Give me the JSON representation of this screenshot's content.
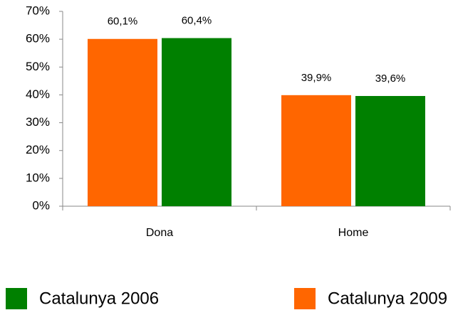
{
  "chart_data": {
    "type": "bar",
    "categories": [
      "Dona",
      "Home"
    ],
    "series": [
      {
        "name": "Catalunya 2009",
        "color": "#ff6600",
        "values": [
          60.1,
          39.9
        ],
        "value_labels": [
          "60,1%",
          "39,9%"
        ]
      },
      {
        "name": "Catalunya 2006",
        "color": "#008000",
        "values": [
          60.4,
          39.6
        ],
        "value_labels": [
          "60,4%",
          "39,6%"
        ]
      }
    ],
    "ylim": [
      0,
      70
    ],
    "yticks": [
      {
        "value": 0,
        "label": "0%"
      },
      {
        "value": 10,
        "label": "10%"
      },
      {
        "value": 20,
        "label": "20%"
      },
      {
        "value": 30,
        "label": "30%"
      },
      {
        "value": 40,
        "label": "40%"
      },
      {
        "value": 50,
        "label": "50%"
      },
      {
        "value": 60,
        "label": "60%"
      },
      {
        "value": 70,
        "label": "70%"
      }
    ],
    "grid": false,
    "legend": "bottom"
  }
}
